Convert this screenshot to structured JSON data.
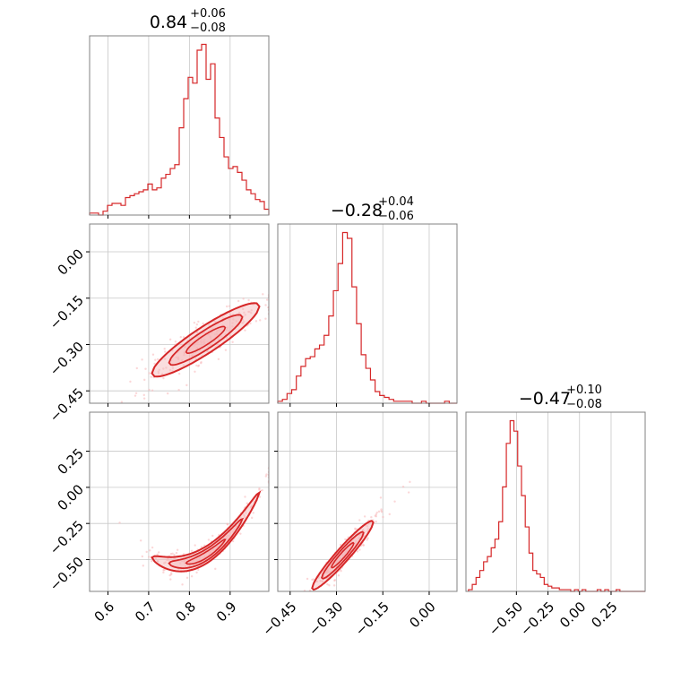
{
  "figure_type": "corner plot",
  "colors": {
    "accent": "#d62728",
    "fill": "#f4b6b8",
    "points": "#f7b6b8",
    "grid": "#c8c8c8",
    "frame": "#808080"
  },
  "chart_data": [
    {
      "type": "histogram",
      "panel": "p1",
      "title": {
        "main": "0.84",
        "sup": "+0.06",
        "sub": "−0.08"
      },
      "xlim": [
        0.555,
        0.995
      ],
      "grid": true,
      "x": [
        0.555,
        0.566,
        0.577,
        0.588,
        0.599,
        0.61,
        0.621,
        0.632,
        0.643,
        0.654,
        0.665,
        0.676,
        0.687,
        0.698,
        0.709,
        0.72,
        0.731,
        0.742,
        0.753,
        0.764,
        0.775,
        0.786,
        0.797,
        0.808,
        0.819,
        0.83,
        0.841,
        0.852,
        0.863,
        0.874,
        0.885,
        0.896,
        0.907,
        0.918,
        0.929,
        0.94,
        0.951,
        0.962,
        0.973,
        0.984
      ],
      "values": [
        1,
        1,
        0,
        2,
        5,
        6,
        6,
        5,
        9,
        10,
        11,
        12,
        13,
        16,
        13,
        14,
        19,
        21,
        24,
        26,
        45,
        60,
        71,
        68,
        85,
        88,
        70,
        78,
        50,
        40,
        30,
        24,
        25,
        22,
        18,
        13,
        11,
        8,
        7,
        3
      ]
    },
    {
      "type": "histogram",
      "panel": "p4",
      "title": {
        "main": "−0.28",
        "sup": "+0.04",
        "sub": "−0.06"
      },
      "xlim": [
        -0.49,
        0.09
      ],
      "grid": true,
      "x": [
        -0.49,
        -0.475,
        -0.46,
        -0.445,
        -0.43,
        -0.415,
        -0.4,
        -0.385,
        -0.37,
        -0.355,
        -0.34,
        -0.325,
        -0.31,
        -0.295,
        -0.28,
        -0.265,
        -0.25,
        -0.235,
        -0.22,
        -0.205,
        -0.19,
        -0.175,
        -0.16,
        -0.145,
        -0.13,
        -0.115,
        -0.1,
        -0.085,
        -0.07,
        -0.055,
        -0.04,
        -0.025,
        -0.01,
        0.005,
        0.02,
        0.035,
        0.05,
        0.065,
        0.08
      ],
      "values": [
        1,
        2,
        5,
        7,
        14,
        19,
        23,
        24,
        28,
        30,
        35,
        45,
        58,
        72,
        88,
        85,
        60,
        41,
        25,
        18,
        12,
        6,
        4,
        3,
        2,
        1,
        1,
        1,
        1,
        0,
        0,
        1,
        0,
        0,
        0,
        0,
        1,
        0,
        0
      ]
    },
    {
      "type": "histogram",
      "panel": "p6",
      "title": {
        "main": "−0.47",
        "sup": "+0.10",
        "sub": "−0.08"
      },
      "xlim": [
        -0.9,
        0.52
      ],
      "grid": true,
      "x": [
        -0.88,
        -0.85,
        -0.82,
        -0.79,
        -0.76,
        -0.73,
        -0.7,
        -0.67,
        -0.64,
        -0.61,
        -0.58,
        -0.55,
        -0.52,
        -0.49,
        -0.46,
        -0.43,
        -0.4,
        -0.37,
        -0.34,
        -0.31,
        -0.28,
        -0.25,
        -0.22,
        -0.19,
        -0.16,
        -0.13,
        -0.1,
        -0.07,
        -0.04,
        -0.01,
        0.02,
        0.05,
        0.08,
        0.11,
        0.14,
        0.17,
        0.2,
        0.23,
        0.26,
        0.29,
        0.32,
        0.35,
        0.38,
        0.41,
        0.44,
        0.47,
        0.5
      ],
      "values": [
        1,
        4,
        8,
        12,
        17,
        20,
        25,
        30,
        40,
        60,
        85,
        98,
        92,
        72,
        55,
        37,
        22,
        12,
        10,
        8,
        4,
        3,
        2,
        2,
        1,
        1,
        1,
        0,
        1,
        0,
        1,
        0,
        0,
        0,
        1,
        0,
        1,
        0,
        0,
        1,
        0,
        0,
        0,
        0,
        0,
        0,
        0
      ]
    },
    {
      "type": "contour",
      "panel": "p2",
      "xlim": [
        0.555,
        0.995
      ],
      "ylim": [
        -0.49,
        0.09
      ],
      "xlabel": "",
      "ylabel": "",
      "yticks": [
        0.0,
        -0.15,
        -0.3,
        -0.45
      ],
      "ytick_labels": [
        "0.00",
        "−0.15",
        "−0.30",
        "−0.45"
      ],
      "relation": "y ≈ −0.285 + 0.82·(x − 0.84)",
      "contour_levels": 3,
      "center": [
        0.84,
        -0.28
      ]
    },
    {
      "type": "contour",
      "panel": "p3",
      "xlim": [
        0.555,
        0.995
      ],
      "ylim": [
        -0.72,
        0.52
      ],
      "xticks": [
        0.6,
        0.7,
        0.8,
        0.9
      ],
      "xtick_labels": [
        "0.6",
        "0.7",
        "0.8",
        "0.9"
      ],
      "yticks": [
        0.25,
        0.0,
        -0.25,
        -0.5
      ],
      "ytick_labels": [
        "0.25",
        "0.00",
        "−0.25",
        "−0.50"
      ],
      "relation": "y ≈ −0.47 + 1.7·(x − 0.84) + 12·(x − 0.84)^2",
      "contour_levels": 3,
      "center": [
        0.84,
        -0.47
      ]
    },
    {
      "type": "contour",
      "panel": "p5",
      "xlim": [
        -0.49,
        0.09
      ],
      "ylim": [
        -0.72,
        0.52
      ],
      "xticks": [
        -0.45,
        -0.3,
        -0.15,
        0.0
      ],
      "xtick_labels": [
        "−0.45",
        "−0.30",
        "−0.15",
        "0.00"
      ],
      "relation": "y ≈ −0.47 + 2.3·(x + 0.28)",
      "contour_levels": 3,
      "center": [
        -0.28,
        -0.47
      ]
    }
  ],
  "diag_xticks": {
    "p1": [
      0.6,
      0.7,
      0.8,
      0.9
    ],
    "p4": [
      -0.45,
      -0.3,
      -0.15,
      0.0
    ],
    "p6": [
      -0.5,
      -0.25,
      0.0,
      0.25
    ],
    "p6_labels": [
      "−0.50",
      "−0.25",
      "0.00",
      "0.25"
    ]
  }
}
